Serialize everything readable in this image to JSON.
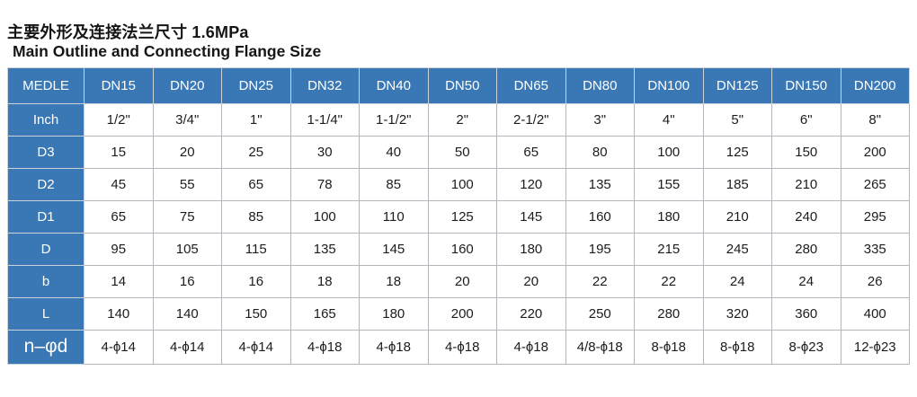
{
  "title": {
    "zh": "主要外形及连接法兰尺寸 1.6MPa",
    "en": "Main Outline and Connecting Flange Size"
  },
  "colors": {
    "header_blue": "#3a78b5",
    "grid_border": "#b2b6bb",
    "header_border": "#c9d1d9",
    "text_dark": "#1c1c1c",
    "text_white": "#ffffff"
  },
  "table": {
    "corner_label": "MEDLE",
    "columns": [
      "DN15",
      "DN20",
      "DN25",
      "DN32",
      "DN40",
      "DN50",
      "DN65",
      "DN80",
      "DN100",
      "DN125",
      "DN150",
      "DN200"
    ],
    "rows": [
      {
        "label": "Inch",
        "values": [
          "1/2\"",
          "3/4\"",
          "1\"",
          "1-1/4\"",
          "1-1/2\"",
          "2\"",
          "2-1/2\"",
          "3\"",
          "4\"",
          "5\"",
          "6\"",
          "8\""
        ]
      },
      {
        "label": "D3",
        "values": [
          15,
          20,
          25,
          30,
          40,
          50,
          65,
          80,
          100,
          125,
          150,
          200
        ]
      },
      {
        "label": "D2",
        "values": [
          45,
          55,
          65,
          78,
          85,
          100,
          120,
          135,
          155,
          185,
          210,
          265
        ]
      },
      {
        "label": "D1",
        "values": [
          65,
          75,
          85,
          100,
          110,
          125,
          145,
          160,
          180,
          210,
          240,
          295
        ]
      },
      {
        "label": "D",
        "values": [
          95,
          105,
          115,
          135,
          145,
          160,
          180,
          195,
          215,
          245,
          280,
          335
        ]
      },
      {
        "label": "b",
        "values": [
          14,
          16,
          16,
          18,
          18,
          20,
          20,
          22,
          22,
          24,
          24,
          26
        ]
      },
      {
        "label": "L",
        "values": [
          140,
          140,
          150,
          165,
          180,
          200,
          220,
          250,
          280,
          320,
          360,
          400
        ]
      },
      {
        "label": "n–φd",
        "values": [
          "4-ϕ14",
          "4-ϕ14",
          "4-ϕ14",
          "4-ϕ18",
          "4-ϕ18",
          "4-ϕ18",
          "4-ϕ18",
          "4/8-ϕ18",
          "8-ϕ18",
          "8-ϕ18",
          "8-ϕ23",
          "12-ϕ23"
        ]
      }
    ]
  }
}
